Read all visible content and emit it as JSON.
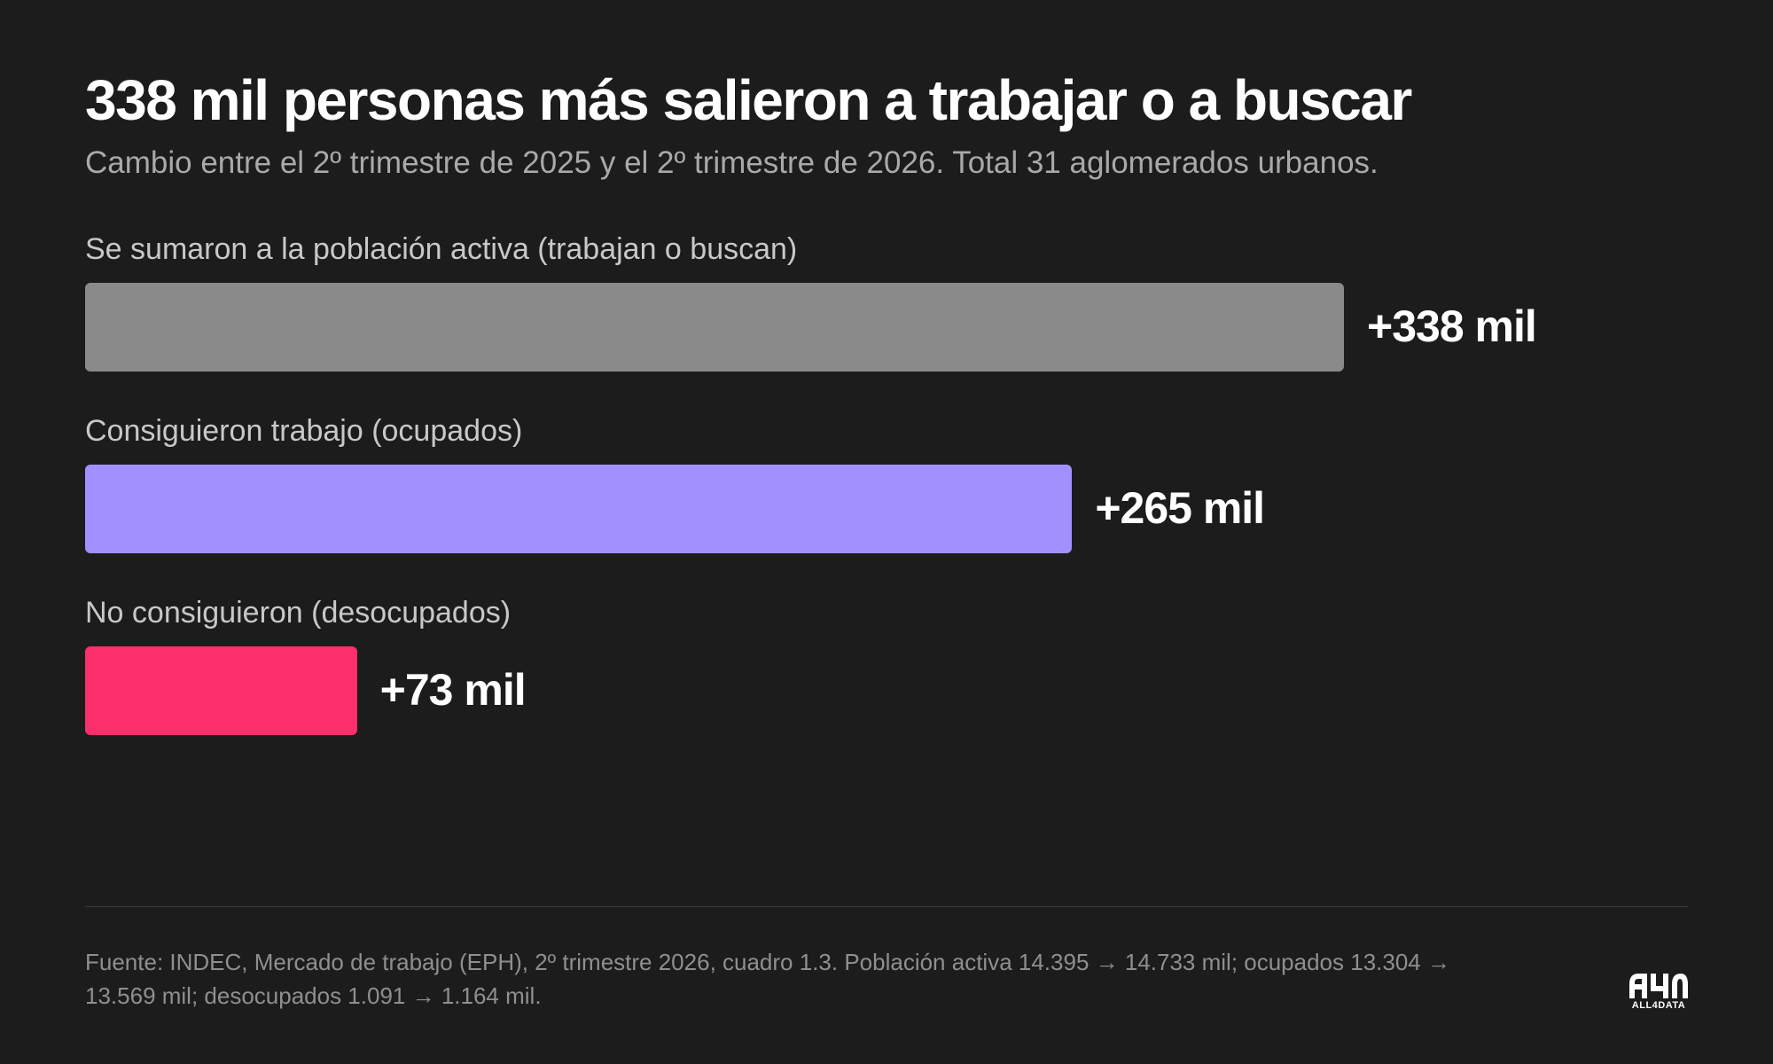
{
  "chart_data": {
    "type": "bar",
    "orientation": "horizontal",
    "title": "338 mil personas más salieron a trabajar o a buscar",
    "subtitle": "Cambio entre el 2º trimestre de 2025 y el 2º trimestre de 2026. Total 31 aglomerados urbanos.",
    "categories": [
      "Se sumaron a la población activa (trabajan o buscan)",
      "Consiguieron trabajo (ocupados)",
      "No consiguieron (desocupados)"
    ],
    "values": [
      338,
      265,
      73
    ],
    "value_labels": [
      "+338 mil",
      "+265 mil",
      "+73 mil"
    ],
    "colors": [
      "#8a8a8a",
      "#a390ff",
      "#fb2f6c"
    ],
    "grid": false,
    "legend": "none"
  },
  "footer": {
    "source": "Fuente: INDEC, Mercado de trabajo (EPH), 2º trimestre 2026, cuadro 1.3. Población activa 14.395 → 14.733 mil; ocupados 13.304 → 13.569 mil; desocupados 1.091 → 1.164 mil.",
    "logo_text": "ALL4DATA"
  }
}
